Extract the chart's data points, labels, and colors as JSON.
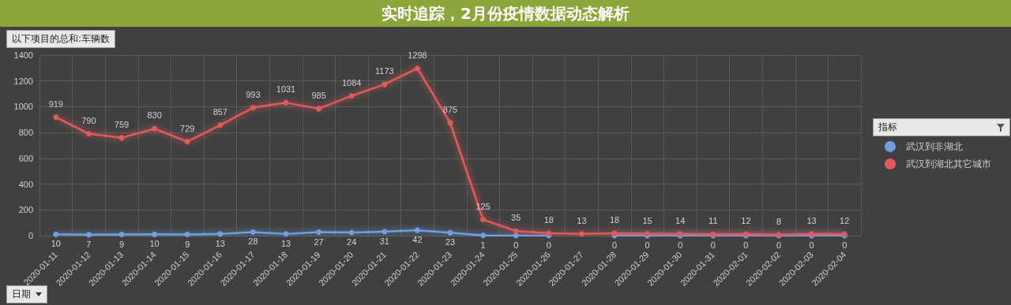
{
  "chart_data": {
    "type": "line",
    "title": "实时追踪，2月份疫情数据动态解析",
    "ylabel": "以下项目的总和:车辆数",
    "xlabel": "日期",
    "legend_title": "指标",
    "categories": [
      "2020-01-11",
      "2020-01-12",
      "2020-01-13",
      "2020-01-14",
      "2020-01-15",
      "2020-01-16",
      "2020-01-17",
      "2020-01-18",
      "2020-01-19",
      "2020-01-20",
      "2020-01-21",
      "2020-01-22",
      "2020-01-23",
      "2020-01-24",
      "2020-01-25",
      "2020-01-26",
      "2020-01-27",
      "2020-01-28",
      "2020-01-29",
      "2020-01-30",
      "2020-01-31",
      "2020-02-01",
      "2020-02-02",
      "2020-02-03",
      "2020-02-04"
    ],
    "series": [
      {
        "name": "武汉到非湖北",
        "color": "#6f9fe0",
        "values": [
          10,
          7,
          9,
          10,
          9,
          13,
          28,
          13,
          27,
          24,
          31,
          42,
          23,
          1,
          0,
          0,
          null,
          0,
          0,
          0,
          0,
          0,
          0,
          0,
          0
        ]
      },
      {
        "name": "武汉到湖北其它城市",
        "color": "#e05a5a",
        "values": [
          919,
          790,
          759,
          830,
          729,
          857,
          993,
          1031,
          985,
          1084,
          1173,
          1298,
          875,
          125,
          35,
          18,
          13,
          18,
          15,
          14,
          11,
          12,
          8,
          13,
          12
        ]
      }
    ],
    "ylim": [
      0,
      1400
    ],
    "yticks": [
      0,
      200,
      400,
      600,
      800,
      1000,
      1200,
      1400
    ],
    "grid": true,
    "legend": "right",
    "marker": "circle",
    "line_style": "solid",
    "data_labels": true
  }
}
